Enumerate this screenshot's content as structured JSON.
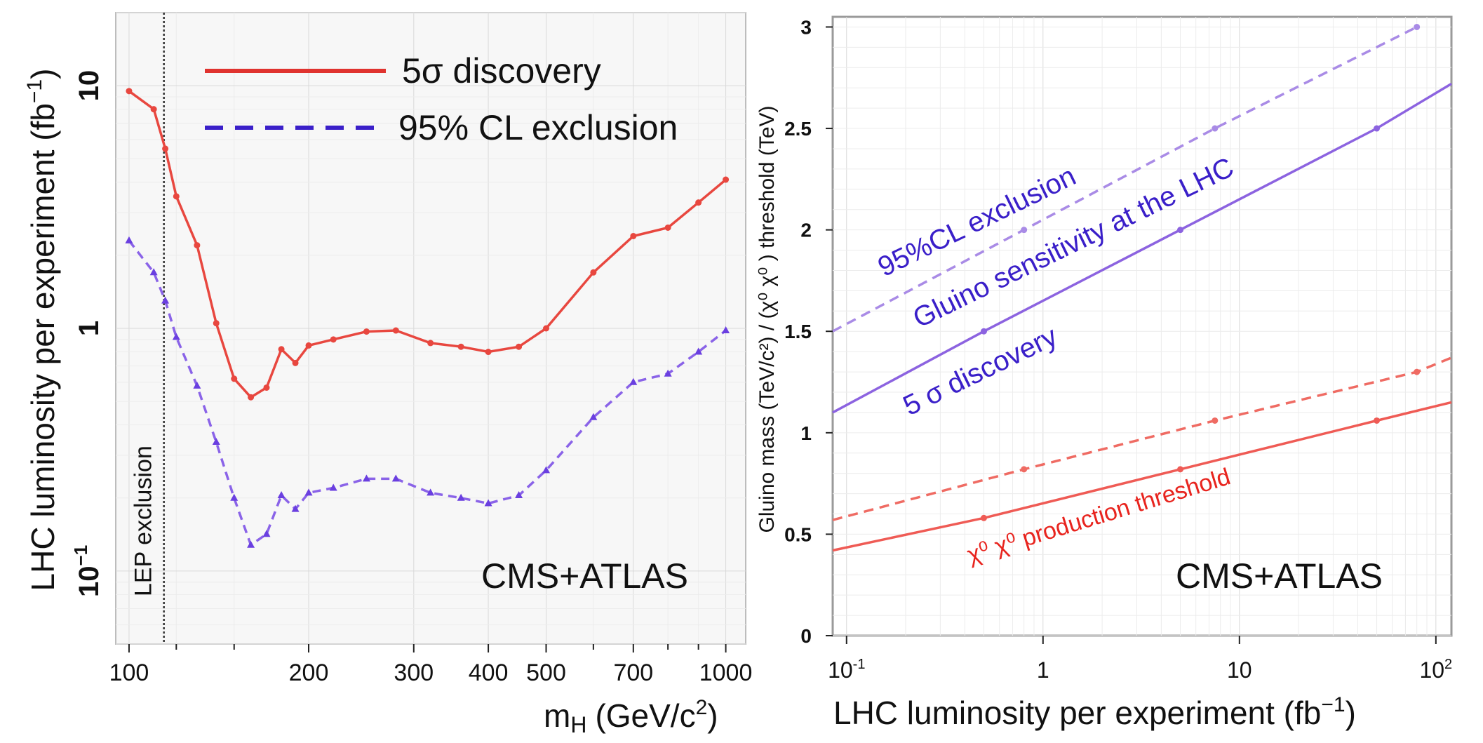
{
  "chart_data": [
    {
      "type": "line",
      "xscale": "log",
      "yscale": "log",
      "xlabel_main": "m",
      "xlabel_sub": "H",
      "xlabel_unit": "(GeV/c",
      "xlabel_unit_sup": "2",
      "xlabel_close": ")",
      "ylabel": "LHC luminosity per experiment (fb",
      "ylabel_sup": "−1",
      "ylabel_close": ")",
      "xlim": [
        95,
        1080
      ],
      "ylim": [
        0.05,
        20
      ],
      "xticks": [
        {
          "v": 100,
          "label": "100"
        },
        {
          "v": 200,
          "label": "200"
        },
        {
          "v": 300,
          "label": "300"
        },
        {
          "v": 400,
          "label": "400"
        },
        {
          "v": 500,
          "label": "500"
        },
        {
          "v": 700,
          "label": "700"
        },
        {
          "v": 1000,
          "label": "1000"
        }
      ],
      "xminor": [
        120,
        150,
        600,
        800,
        900
      ],
      "yticks": [
        {
          "v": 10,
          "label": "10",
          "sup": ""
        },
        {
          "v": 1,
          "label": "1",
          "sup": ""
        },
        {
          "v": 0.1,
          "label": "10",
          "sup": "−1"
        }
      ],
      "lep_x": 114.4,
      "lep_label": "LEP exclusion",
      "legend": [
        {
          "label": "5σ discovery",
          "color": "#e0332f",
          "dash": "solid"
        },
        {
          "label": "95% CL exclusion",
          "color": "#3a1fc9",
          "dash": "dashed"
        }
      ],
      "annotation": "CMS+ATLAS",
      "series": [
        {
          "name": "5σ discovery",
          "color": "#e8473f",
          "dash": "solid",
          "x": [
            100,
            110,
            115,
            120,
            130,
            140,
            150,
            160,
            170,
            180,
            190,
            200,
            220,
            250,
            280,
            320,
            360,
            400,
            450,
            500,
            600,
            700,
            800,
            900,
            1000
          ],
          "y": [
            9.5,
            8.0,
            5.5,
            3.5,
            2.2,
            1.05,
            0.62,
            0.52,
            0.57,
            0.82,
            0.72,
            0.85,
            0.9,
            0.97,
            0.98,
            0.87,
            0.84,
            0.8,
            0.84,
            1.0,
            1.7,
            2.4,
            2.6,
            3.3,
            4.1
          ]
        },
        {
          "name": "95% CL exclusion",
          "color": "#8a63e8",
          "dash": "dashed",
          "x": [
            100,
            110,
            115,
            120,
            130,
            140,
            150,
            160,
            170,
            180,
            190,
            200,
            220,
            250,
            280,
            320,
            360,
            400,
            450,
            500,
            600,
            700,
            800,
            900,
            1000
          ],
          "y": [
            2.3,
            1.7,
            1.3,
            0.92,
            0.58,
            0.34,
            0.2,
            0.128,
            0.142,
            0.205,
            0.18,
            0.21,
            0.22,
            0.24,
            0.24,
            0.21,
            0.2,
            0.19,
            0.205,
            0.26,
            0.43,
            0.6,
            0.65,
            0.8,
            0.98
          ]
        }
      ]
    },
    {
      "type": "line",
      "xscale": "log",
      "yscale": "linear",
      "xlabel": "LHC luminosity per experiment (fb",
      "xlabel_sup": "−1",
      "xlabel_close": ")",
      "ylabel": "Gluino mass (TeV/c²) / (χ⁰ χ⁰ ) threshold (TeV)",
      "xlim": [
        0.085,
        120
      ],
      "ylim": [
        0,
        3.05
      ],
      "xticks": [
        {
          "v": 0.1,
          "label": "10",
          "sup": "-1"
        },
        {
          "v": 1,
          "label": "1",
          "sup": ""
        },
        {
          "v": 10,
          "label": "10",
          "sup": ""
        },
        {
          "v": 100,
          "label": "10",
          "sup": "2"
        }
      ],
      "yticks": [
        {
          "v": 0,
          "label": "0"
        },
        {
          "v": 0.5,
          "label": "0.5"
        },
        {
          "v": 1,
          "label": "1"
        },
        {
          "v": 1.5,
          "label": "1.5"
        },
        {
          "v": 2,
          "label": "2"
        },
        {
          "v": 2.5,
          "label": "2.5"
        },
        {
          "v": 3,
          "label": "3"
        }
      ],
      "annotations": {
        "excl": "95%CL exclusion",
        "gluino": "Gluino sensitivity at the LHC",
        "disc": "5 σ discovery",
        "chi": "χ⁰ χ⁰ production threshold",
        "brand": "CMS+ATLAS"
      },
      "series": [
        {
          "name": "gluino 95%CL exclusion",
          "color": "#a98be6",
          "dash": "dashed",
          "x": [
            0.085,
            0.8,
            7.5,
            80
          ],
          "y": [
            1.5,
            2.0,
            2.5,
            3.0
          ],
          "markers_x": [
            0.8,
            7.5,
            80
          ],
          "markers_y": [
            2.0,
            2.5,
            3.0
          ]
        },
        {
          "name": "gluino 5σ discovery",
          "color": "#8c63e0",
          "dash": "solid",
          "x": [
            0.085,
            0.5,
            5,
            50,
            120
          ],
          "y": [
            1.1,
            1.5,
            2.0,
            2.5,
            2.72
          ],
          "markers_x": [
            0.5,
            5,
            50
          ],
          "markers_y": [
            1.5,
            2.0,
            2.5
          ]
        },
        {
          "name": "threshold 95%CL exclusion",
          "color": "#ef6b63",
          "dash": "dashed",
          "x": [
            0.085,
            0.8,
            7.5,
            80,
            120
          ],
          "y": [
            0.57,
            0.82,
            1.06,
            1.3,
            1.37
          ],
          "markers_x": [
            0.8,
            7.5,
            80
          ],
          "markers_y": [
            0.82,
            1.06,
            1.3
          ]
        },
        {
          "name": "threshold 5σ discovery",
          "color": "#ef5b55",
          "dash": "solid",
          "x": [
            0.085,
            0.5,
            5,
            50,
            120
          ],
          "y": [
            0.42,
            0.58,
            0.82,
            1.06,
            1.15
          ],
          "markers_x": [
            0.5,
            5,
            50
          ],
          "markers_y": [
            0.58,
            0.82,
            1.06
          ]
        }
      ]
    }
  ]
}
